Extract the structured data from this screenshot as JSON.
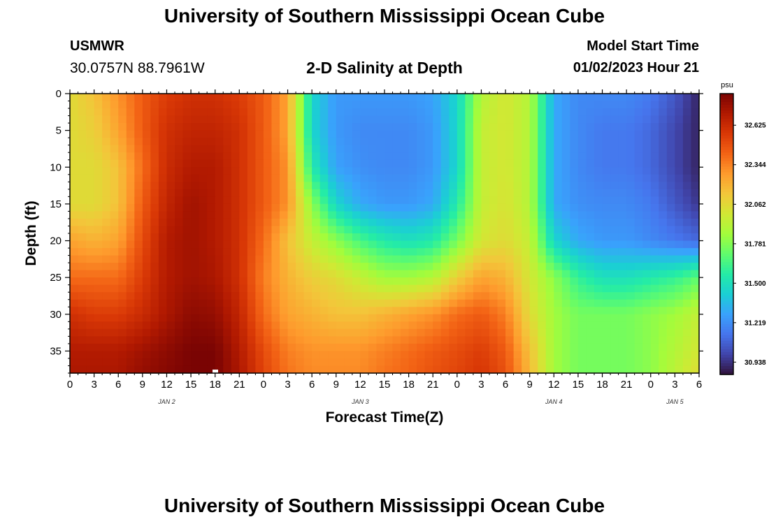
{
  "header": {
    "title": "University of Southern Mississippi Ocean Cube",
    "station": "USMWR",
    "coords": "30.0757N  88.7961W",
    "subtitle": "2-D Salinity at Depth",
    "model_label": "Model Start Time",
    "model_time": "01/02/2023 Hour 21"
  },
  "footer": {
    "title": "University of Southern Mississippi Ocean Cube"
  },
  "chart_data": {
    "type": "heatmap",
    "title": "2-D Salinity at Depth",
    "xlabel": "Forecast Time(Z)",
    "ylabel": "Depth (ft)",
    "x_range_hours": [
      0,
      78
    ],
    "x_tick_labels": [
      "0",
      "3",
      "6",
      "9",
      "12",
      "15",
      "18",
      "21",
      "0",
      "3",
      "6",
      "9",
      "12",
      "15",
      "18",
      "21",
      "0",
      "3",
      "6",
      "9",
      "12",
      "15",
      "18",
      "21",
      "0",
      "3",
      "6"
    ],
    "x_date_labels": [
      {
        "label": "JAN 2",
        "hour": 12
      },
      {
        "label": "JAN 3",
        "hour": 36
      },
      {
        "label": "JAN 4",
        "hour": 60
      },
      {
        "label": "JAN 5",
        "hour": 75
      }
    ],
    "y_range_ft": [
      0,
      38
    ],
    "y_ticks": [
      0,
      5,
      10,
      15,
      20,
      25,
      30,
      35
    ],
    "colorbar": {
      "unit": "psu",
      "min": 30.85,
      "max": 32.85,
      "tick_values": [
        32.625,
        32.344,
        32.062,
        31.781,
        31.5,
        31.219,
        30.938
      ],
      "tick_labels": [
        "32.625",
        "32.344",
        "32.062",
        "31.781",
        "31.500",
        "31.219",
        "30.938"
      ],
      "colormap": [
        "#30123b",
        "#4145ab",
        "#4675ed",
        "#39a2fc",
        "#1bcfd4",
        "#24eca6",
        "#61fc6c",
        "#a4fc3b",
        "#d1e834",
        "#f3c63a",
        "#fe9b2d",
        "#f36315",
        "#d93806",
        "#b11901",
        "#7a0403"
      ]
    },
    "grid": {
      "x_hours": [
        0,
        3,
        6,
        9,
        12,
        15,
        18,
        21,
        24,
        27,
        30,
        33,
        36,
        39,
        42,
        45,
        48,
        51,
        54,
        57,
        60,
        63,
        66,
        69,
        72,
        75,
        78
      ],
      "depths_ft": [
        0,
        5,
        10,
        15,
        20,
        25,
        30,
        35,
        38
      ],
      "salinity_psu": [
        [
          32.05,
          32.15,
          32.3,
          32.45,
          32.55,
          32.6,
          32.6,
          32.55,
          32.45,
          32.25,
          31.45,
          31.25,
          31.25,
          31.25,
          31.25,
          31.28,
          31.45,
          31.9,
          32.0,
          31.9,
          31.3,
          31.2,
          31.2,
          31.2,
          31.15,
          31.05,
          30.9
        ],
        [
          32.05,
          32.1,
          32.25,
          32.45,
          32.6,
          32.65,
          32.65,
          32.6,
          32.45,
          32.25,
          31.45,
          31.25,
          31.2,
          31.2,
          31.2,
          31.25,
          31.45,
          31.95,
          32.0,
          31.9,
          31.3,
          31.2,
          31.15,
          31.15,
          31.1,
          31.0,
          30.9
        ],
        [
          32.05,
          32.05,
          32.15,
          32.4,
          32.62,
          32.7,
          32.7,
          32.6,
          32.45,
          32.3,
          31.55,
          31.28,
          31.22,
          31.2,
          31.2,
          31.25,
          31.45,
          31.95,
          32.0,
          31.9,
          31.3,
          31.2,
          31.15,
          31.15,
          31.1,
          31.0,
          30.9
        ],
        [
          32.05,
          32.05,
          32.15,
          32.45,
          32.65,
          32.75,
          32.7,
          32.6,
          32.45,
          32.3,
          31.8,
          31.45,
          31.3,
          31.25,
          31.25,
          31.3,
          31.55,
          31.95,
          32.02,
          31.9,
          31.3,
          31.22,
          31.2,
          31.2,
          31.15,
          31.05,
          30.95
        ],
        [
          32.25,
          32.2,
          32.25,
          32.5,
          32.7,
          32.75,
          32.7,
          32.6,
          32.4,
          32.15,
          31.95,
          31.8,
          31.65,
          31.55,
          31.5,
          31.55,
          31.75,
          32.0,
          32.05,
          31.95,
          31.45,
          31.3,
          31.25,
          31.25,
          31.2,
          31.15,
          31.1
        ],
        [
          32.4,
          32.4,
          32.4,
          32.55,
          32.7,
          32.75,
          32.72,
          32.6,
          32.35,
          32.2,
          32.1,
          32.05,
          31.95,
          31.85,
          31.85,
          31.9,
          32.1,
          32.25,
          32.2,
          32.0,
          31.8,
          31.6,
          31.5,
          31.5,
          31.55,
          31.6,
          31.7
        ],
        [
          32.6,
          32.55,
          32.55,
          32.62,
          32.72,
          32.8,
          32.78,
          32.65,
          32.4,
          32.25,
          32.2,
          32.15,
          32.15,
          32.2,
          32.25,
          32.3,
          32.4,
          32.45,
          32.35,
          32.05,
          31.85,
          31.75,
          31.75,
          31.75,
          31.8,
          31.85,
          31.95
        ],
        [
          32.7,
          32.7,
          32.7,
          32.75,
          32.8,
          32.85,
          32.85,
          32.7,
          32.5,
          32.35,
          32.3,
          32.3,
          32.3,
          32.35,
          32.4,
          32.45,
          32.5,
          32.55,
          32.45,
          32.15,
          31.85,
          31.75,
          31.75,
          31.75,
          31.8,
          31.9,
          32.0
        ],
        [
          32.72,
          32.72,
          32.72,
          32.78,
          32.82,
          32.85,
          32.85,
          32.72,
          32.52,
          32.38,
          32.32,
          32.32,
          32.32,
          32.38,
          32.42,
          32.48,
          32.52,
          32.58,
          32.48,
          32.18,
          31.85,
          31.75,
          31.75,
          31.75,
          31.8,
          31.92,
          32.05
        ]
      ]
    }
  }
}
